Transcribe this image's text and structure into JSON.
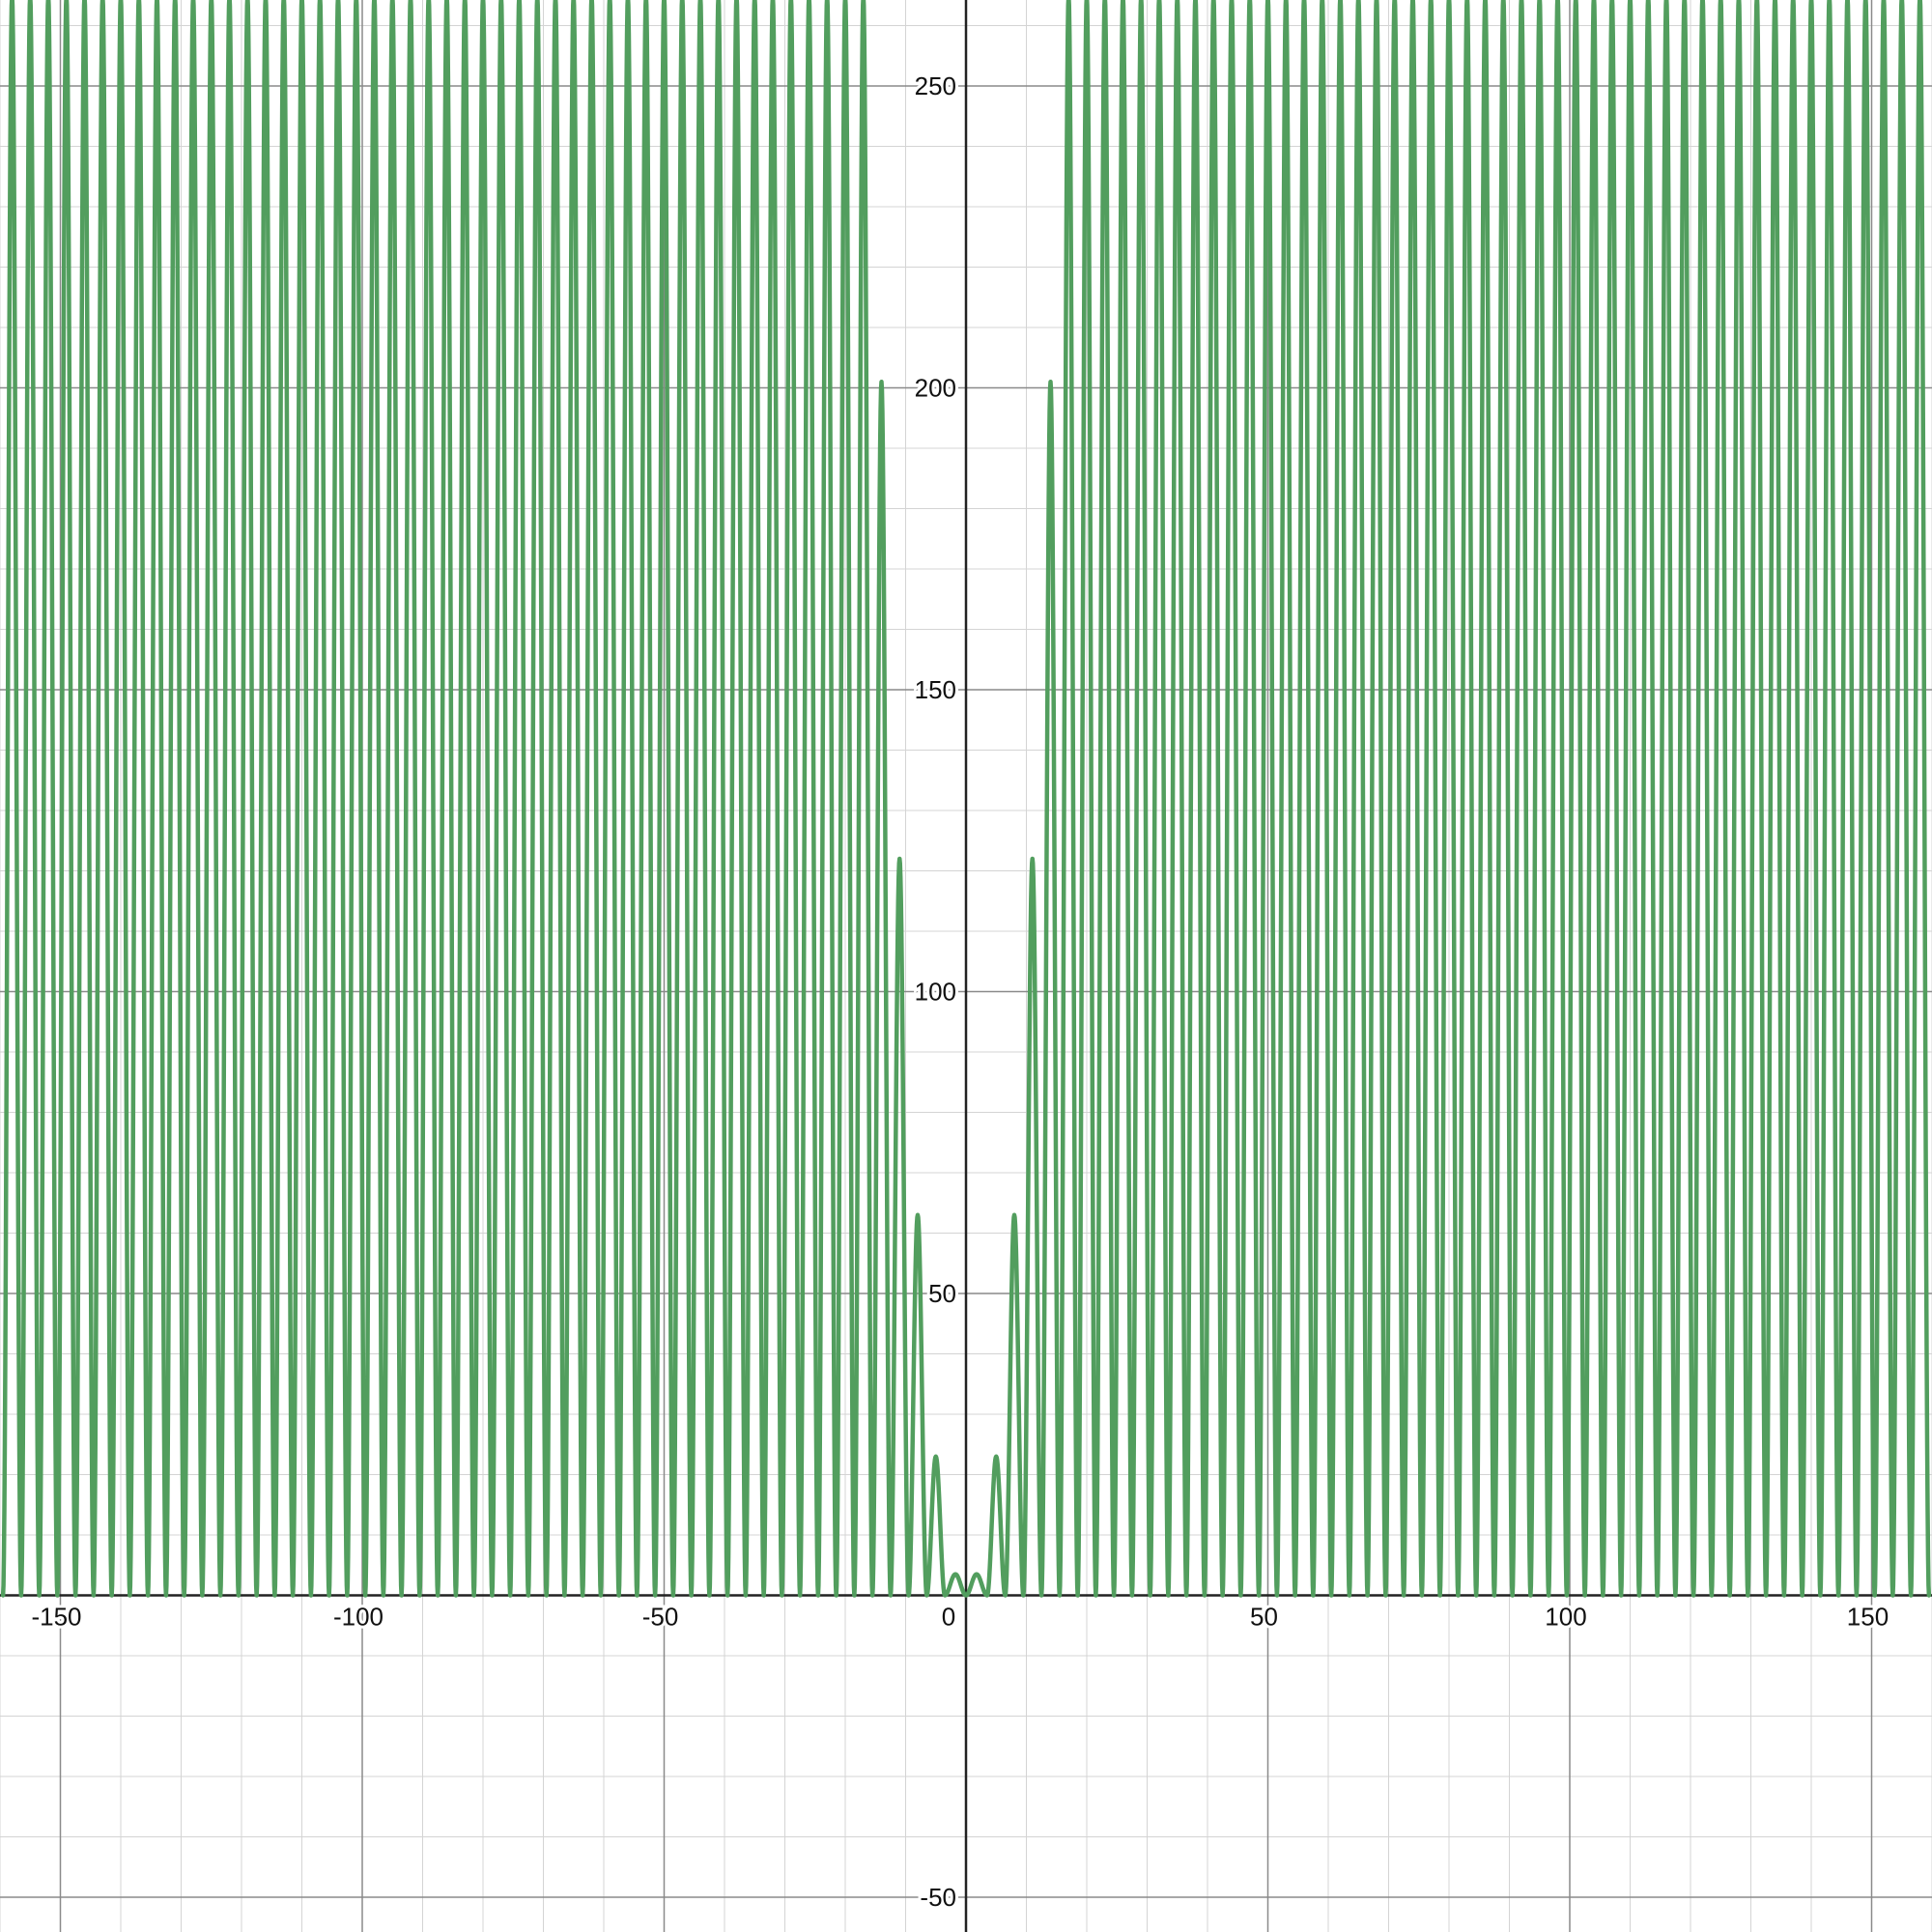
{
  "chart_data": {
    "type": "line",
    "title": "",
    "xlabel": "",
    "ylabel": "",
    "xlim": [
      -160,
      160
    ],
    "ylim": [
      -55,
      265
    ],
    "grid": true,
    "minor_grid_step": 10,
    "major_grid_step": 50,
    "x_ticks": [
      {
        "value": -150,
        "label": "-150"
      },
      {
        "value": -100,
        "label": "-100"
      },
      {
        "value": -50,
        "label": "-50"
      },
      {
        "value": 0,
        "label": "0"
      },
      {
        "value": 50,
        "label": "50"
      },
      {
        "value": 100,
        "label": "100"
      },
      {
        "value": 150,
        "label": "150"
      }
    ],
    "y_ticks": [
      {
        "value": 250,
        "label": "250"
      },
      {
        "value": 200,
        "label": "200"
      },
      {
        "value": 150,
        "label": "150"
      },
      {
        "value": 100,
        "label": "100"
      },
      {
        "value": 50,
        "label": "50"
      },
      {
        "value": -50,
        "label": "-50"
      }
    ],
    "series": [
      {
        "color": "#529e5e",
        "curve": "oscillating, non-negative, symmetric about x=0; peak height grows with |x|; oscillation period narrows near the origin",
        "peaks": [
          {
            "x": -158,
            "y": 265
          },
          {
            "x": -155,
            "y": 265
          },
          {
            "x": -152,
            "y": 265
          },
          {
            "x": -149,
            "y": 265
          },
          {
            "x": -146,
            "y": 265
          },
          {
            "x": -143,
            "y": 265
          },
          {
            "x": -140,
            "y": 265
          },
          {
            "x": -137,
            "y": 265
          },
          {
            "x": -134,
            "y": 265
          },
          {
            "x": -131,
            "y": 265
          },
          {
            "x": -128,
            "y": 265
          },
          {
            "x": -125,
            "y": 265
          },
          {
            "x": -122,
            "y": 265
          },
          {
            "x": -119,
            "y": 265
          },
          {
            "x": -116,
            "y": 265
          },
          {
            "x": -113,
            "y": 265
          },
          {
            "x": -110,
            "y": 265
          },
          {
            "x": -107,
            "y": 265
          },
          {
            "x": -104,
            "y": 265
          },
          {
            "x": -101,
            "y": 265
          },
          {
            "x": -98,
            "y": 265
          },
          {
            "x": -95,
            "y": 265
          },
          {
            "x": -92,
            "y": 265
          },
          {
            "x": -89,
            "y": 265
          },
          {
            "x": -86,
            "y": 265
          },
          {
            "x": -83,
            "y": 265
          },
          {
            "x": -80,
            "y": 265
          },
          {
            "x": -77,
            "y": 265
          },
          {
            "x": -74,
            "y": 265
          },
          {
            "x": -71,
            "y": 265
          },
          {
            "x": -68,
            "y": 265
          },
          {
            "x": -65,
            "y": 265
          },
          {
            "x": -62,
            "y": 265
          },
          {
            "x": -59,
            "y": 265
          },
          {
            "x": -56,
            "y": 265
          },
          {
            "x": -53,
            "y": 265
          },
          {
            "x": -50,
            "y": 265
          },
          {
            "x": -47,
            "y": 265
          },
          {
            "x": -44,
            "y": 265
          },
          {
            "x": -41,
            "y": 265
          },
          {
            "x": -38,
            "y": 265
          },
          {
            "x": -35,
            "y": 265
          },
          {
            "x": -32,
            "y": 265
          },
          {
            "x": -29,
            "y": 265
          },
          {
            "x": -26,
            "y": 265
          },
          {
            "x": -23,
            "y": 265
          },
          {
            "x": -20,
            "y": 265
          },
          {
            "x": -17,
            "y": 265
          },
          {
            "x": -14,
            "y": 201
          },
          {
            "x": -11,
            "y": 122
          },
          {
            "x": -8,
            "y": 63
          },
          {
            "x": -5,
            "y": 23
          },
          {
            "x": -2,
            "y": 3.5
          },
          {
            "x": 2,
            "y": 3.5
          },
          {
            "x": 5,
            "y": 23
          },
          {
            "x": 8,
            "y": 63
          },
          {
            "x": 11,
            "y": 122
          },
          {
            "x": 14,
            "y": 201
          },
          {
            "x": 17,
            "y": 265
          },
          {
            "x": 20,
            "y": 265
          },
          {
            "x": 23,
            "y": 265
          },
          {
            "x": 26,
            "y": 265
          },
          {
            "x": 29,
            "y": 265
          },
          {
            "x": 32,
            "y": 265
          },
          {
            "x": 35,
            "y": 265
          },
          {
            "x": 38,
            "y": 265
          },
          {
            "x": 41,
            "y": 265
          },
          {
            "x": 44,
            "y": 265
          },
          {
            "x": 47,
            "y": 265
          },
          {
            "x": 50,
            "y": 265
          },
          {
            "x": 53,
            "y": 265
          },
          {
            "x": 56,
            "y": 265
          },
          {
            "x": 59,
            "y": 265
          },
          {
            "x": 62,
            "y": 265
          },
          {
            "x": 65,
            "y": 265
          },
          {
            "x": 68,
            "y": 265
          },
          {
            "x": 71,
            "y": 265
          },
          {
            "x": 74,
            "y": 265
          },
          {
            "x": 77,
            "y": 265
          },
          {
            "x": 80,
            "y": 265
          },
          {
            "x": 83,
            "y": 265
          },
          {
            "x": 86,
            "y": 265
          },
          {
            "x": 89,
            "y": 265
          },
          {
            "x": 92,
            "y": 265
          },
          {
            "x": 95,
            "y": 265
          },
          {
            "x": 98,
            "y": 265
          },
          {
            "x": 101,
            "y": 265
          },
          {
            "x": 104,
            "y": 265
          },
          {
            "x": 107,
            "y": 265
          },
          {
            "x": 110,
            "y": 265
          },
          {
            "x": 113,
            "y": 265
          },
          {
            "x": 116,
            "y": 265
          },
          {
            "x": 119,
            "y": 265
          },
          {
            "x": 122,
            "y": 265
          },
          {
            "x": 125,
            "y": 265
          },
          {
            "x": 128,
            "y": 265
          },
          {
            "x": 131,
            "y": 265
          },
          {
            "x": 134,
            "y": 265
          },
          {
            "x": 137,
            "y": 265
          },
          {
            "x": 140,
            "y": 265
          },
          {
            "x": 143,
            "y": 265
          },
          {
            "x": 146,
            "y": 265
          },
          {
            "x": 149,
            "y": 265
          },
          {
            "x": 152,
            "y": 265
          },
          {
            "x": 155,
            "y": 265
          },
          {
            "x": 158,
            "y": 265
          }
        ]
      }
    ]
  }
}
